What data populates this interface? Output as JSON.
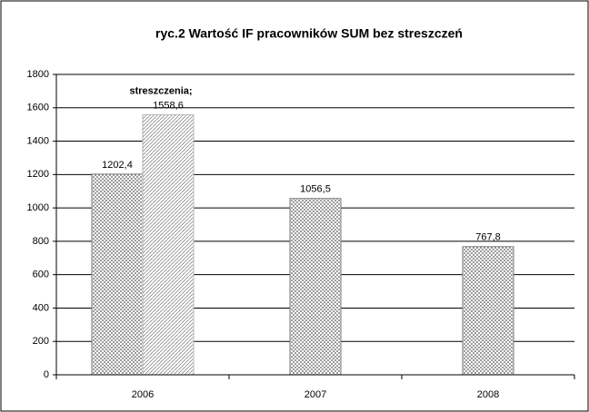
{
  "chart_data": {
    "type": "bar",
    "title": "ryc.2 Wartość IF pracowników SUM bez streszczeń",
    "categories": [
      "2006",
      "2007",
      "2008"
    ],
    "series": [
      {
        "color": "#7a7a7a",
        "values": [
          1202.4,
          1056.5,
          767.8
        ],
        "value_labels": [
          "1202,4",
          "1056,5",
          "767,8"
        ]
      },
      {
        "name": "streszczenia;",
        "color": "#b5b5b5",
        "values": [
          1558.6,
          null,
          null
        ],
        "value_labels": [
          "1558,6",
          null,
          null
        ]
      }
    ],
    "ylim": [
      0,
      1800
    ],
    "yticks": [
      0,
      200,
      400,
      600,
      800,
      1000,
      1200,
      1400,
      1600,
      1800
    ],
    "grid": true
  }
}
